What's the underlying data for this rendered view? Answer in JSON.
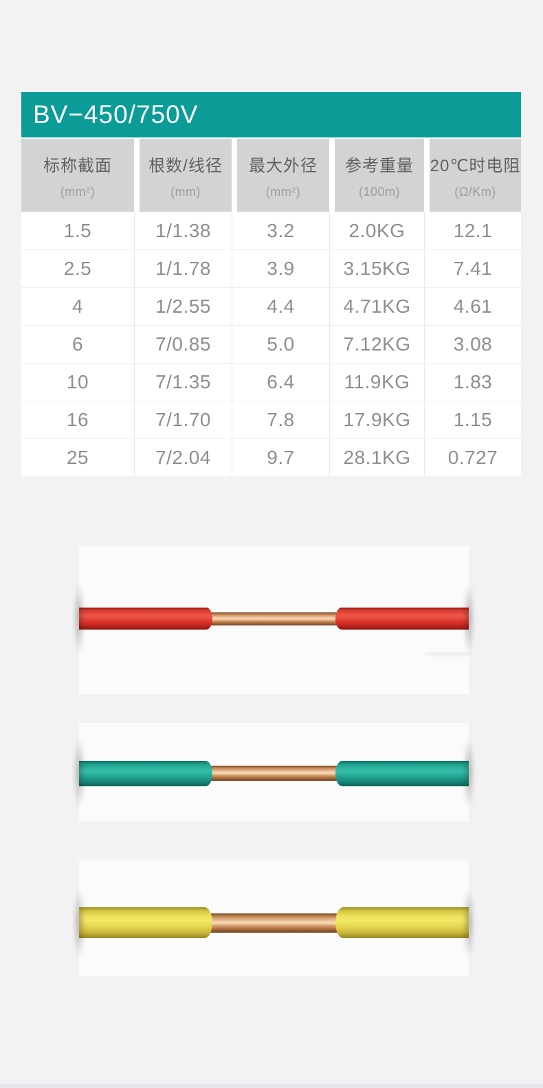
{
  "page": {
    "background_color": "#f2f2f3",
    "bottom_strip_color": "#e8e6ea"
  },
  "spec_table": {
    "title": "BV−450/750V",
    "title_bar_color": "#0b9c98",
    "header_bg_color": "#d3d3d4",
    "columns": [
      {
        "label": "标称截面",
        "unit": "(mm²)"
      },
      {
        "label": "根数/线径",
        "unit": "(mm)"
      },
      {
        "label": "最大外径",
        "unit": "(mm²)"
      },
      {
        "label": "参考重量",
        "unit": "(100m)"
      },
      {
        "label": "20℃时电阻",
        "unit": "(Ω/Km)"
      }
    ],
    "rows": [
      [
        "1.5",
        "1/1.38",
        "3.2",
        "2.0KG",
        "12.1"
      ],
      [
        "2.5",
        "1/1.78",
        "3.9",
        "3.15KG",
        "7.41"
      ],
      [
        "4",
        "1/2.55",
        "4.4",
        "4.71KG",
        "4.61"
      ],
      [
        "6",
        "7/0.85",
        "5.0",
        "7.12KG",
        "3.08"
      ],
      [
        "10",
        "7/1.35",
        "6.4",
        "11.9KG",
        "1.83"
      ],
      [
        "16",
        "7/1.70",
        "7.8",
        "17.9KG",
        "1.15"
      ],
      [
        "25",
        "7/2.04",
        "9.7",
        "28.1KG",
        "0.727"
      ]
    ]
  },
  "wire_photos": [
    {
      "name": "red-wire-photo",
      "insulation_color": "#e03a31"
    },
    {
      "name": "green-wire-photo",
      "insulation_color": "#25a795"
    },
    {
      "name": "yellow-wire-photo",
      "insulation_color": "#e9da52"
    }
  ],
  "copper_color": "#d8a071"
}
